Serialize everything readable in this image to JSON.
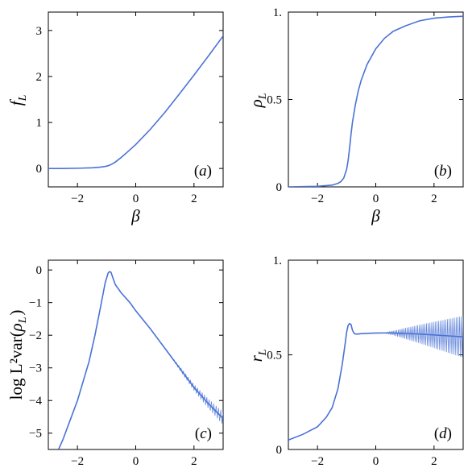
{
  "colors": {
    "series": "#4a72d6",
    "axis": "#000000"
  },
  "chart_data": [
    {
      "type": "line",
      "panel": "(a)",
      "xlabel": "β",
      "ylabel": "f_L",
      "ylabel_main": "f",
      "ylabel_sub": "L",
      "ylabel_pre": "",
      "ylabel_post": "",
      "xlim": [
        -3,
        3
      ],
      "ylim": [
        -0.4,
        3.4
      ],
      "xticks": [
        -2,
        0,
        2
      ],
      "yticks": [
        0,
        1,
        2,
        3
      ],
      "ytick_labels": [
        "0",
        "1",
        "2",
        "3"
      ],
      "tag_pos": "bottom-right",
      "series": [
        {
          "x": [
            -3,
            -2.5,
            -2,
            -1.5,
            -1.2,
            -1.0,
            -0.9,
            -0.8,
            -0.7,
            -0.6,
            -0.5,
            -0.3,
            0,
            0.5,
            1,
            1.5,
            2,
            2.5,
            3
          ],
          "y": [
            0.0,
            0.0,
            0.005,
            0.015,
            0.03,
            0.05,
            0.07,
            0.1,
            0.14,
            0.19,
            0.24,
            0.35,
            0.52,
            0.85,
            1.22,
            1.62,
            2.03,
            2.45,
            2.88
          ]
        }
      ]
    },
    {
      "type": "line",
      "panel": "(b)",
      "xlabel": "β",
      "ylabel": "ρ_L",
      "ylabel_main": "ρ",
      "ylabel_sub": "L",
      "ylabel_pre": "",
      "ylabel_post": "",
      "xlim": [
        -3,
        3
      ],
      "ylim": [
        0,
        1
      ],
      "xticks": [
        -2,
        0,
        2
      ],
      "yticks": [
        0,
        0.5,
        1
      ],
      "ytick_labels": [
        "0",
        "0.5",
        "1."
      ],
      "tag_pos": "bottom-right",
      "series": [
        {
          "x": [
            -3,
            -2,
            -1.5,
            -1.3,
            -1.2,
            -1.1,
            -1.0,
            -0.95,
            -0.9,
            -0.85,
            -0.8,
            -0.7,
            -0.6,
            -0.5,
            -0.3,
            0,
            0.3,
            0.6,
            1,
            1.5,
            2,
            2.5,
            3
          ],
          "y": [
            0.0,
            0.003,
            0.01,
            0.02,
            0.03,
            0.05,
            0.1,
            0.15,
            0.22,
            0.3,
            0.37,
            0.47,
            0.55,
            0.61,
            0.7,
            0.79,
            0.85,
            0.89,
            0.92,
            0.95,
            0.965,
            0.972,
            0.976
          ]
        }
      ]
    },
    {
      "type": "line",
      "panel": "(c)",
      "xlabel": "β",
      "ylabel": "log L²var(ρ_L)",
      "ylabel_main": "ρ",
      "ylabel_sub": "L",
      "ylabel_pre": "log L²var(",
      "ylabel_post": ")",
      "xlim": [
        -3,
        3
      ],
      "ylim": [
        -5.5,
        0.3
      ],
      "xticks": [
        -2,
        0,
        2
      ],
      "yticks": [
        0,
        -1,
        -2,
        -3,
        -4,
        -5
      ],
      "ytick_labels": [
        "0",
        "-1",
        "-2",
        "-3",
        "-4",
        "-5"
      ],
      "tag_pos": "bottom-right",
      "series": [
        {
          "x": [
            -2.65,
            -2.5,
            -2.0,
            -1.6,
            -1.4,
            -1.2,
            -1.05,
            -0.95,
            -0.9,
            -0.85,
            -0.8,
            -0.7,
            -0.5,
            -0.2,
            0,
            0.5,
            1,
            1.5,
            2,
            2.5,
            3
          ],
          "y": [
            -5.5,
            -5.2,
            -4.0,
            -2.8,
            -2.0,
            -1.1,
            -0.4,
            -0.1,
            -0.05,
            -0.07,
            -0.2,
            -0.45,
            -0.7,
            -1.0,
            -1.25,
            -1.8,
            -2.4,
            -3.0,
            -3.6,
            -4.1,
            -4.55
          ]
        }
      ],
      "band": {
        "from_x": 1.0,
        "half_width": [
          0.0,
          0.2
        ],
        "wiggle_step": 0.04
      }
    },
    {
      "type": "line",
      "panel": "(d)",
      "xlabel": "β",
      "ylabel": "r_L",
      "ylabel_main": "r",
      "ylabel_sub": "L",
      "ylabel_pre": "",
      "ylabel_post": "",
      "xlim": [
        -3,
        3
      ],
      "ylim": [
        0,
        1
      ],
      "xticks": [
        -2,
        0,
        2
      ],
      "yticks": [
        0,
        0.5,
        1
      ],
      "ytick_labels": [
        "0",
        "0.5",
        "1."
      ],
      "tag_pos": "bottom-right",
      "series": [
        {
          "x": [
            -3,
            -2.5,
            -2,
            -1.7,
            -1.5,
            -1.3,
            -1.15,
            -1.05,
            -1.0,
            -0.95,
            -0.9,
            -0.85,
            -0.8,
            -0.75,
            -0.7,
            -0.6,
            -0.5,
            -0.2,
            0,
            0.5,
            1,
            1.5,
            2,
            2.5,
            3
          ],
          "y": [
            0.05,
            0.08,
            0.12,
            0.17,
            0.22,
            0.32,
            0.45,
            0.56,
            0.62,
            0.655,
            0.665,
            0.66,
            0.63,
            0.615,
            0.61,
            0.61,
            0.612,
            0.614,
            0.615,
            0.616,
            0.613,
            0.61,
            0.605,
            0.6,
            0.595
          ]
        }
      ],
      "band": {
        "from_x": 0.3,
        "half_width": [
          0.0,
          0.11
        ],
        "wiggle_step": 0.03
      }
    }
  ]
}
